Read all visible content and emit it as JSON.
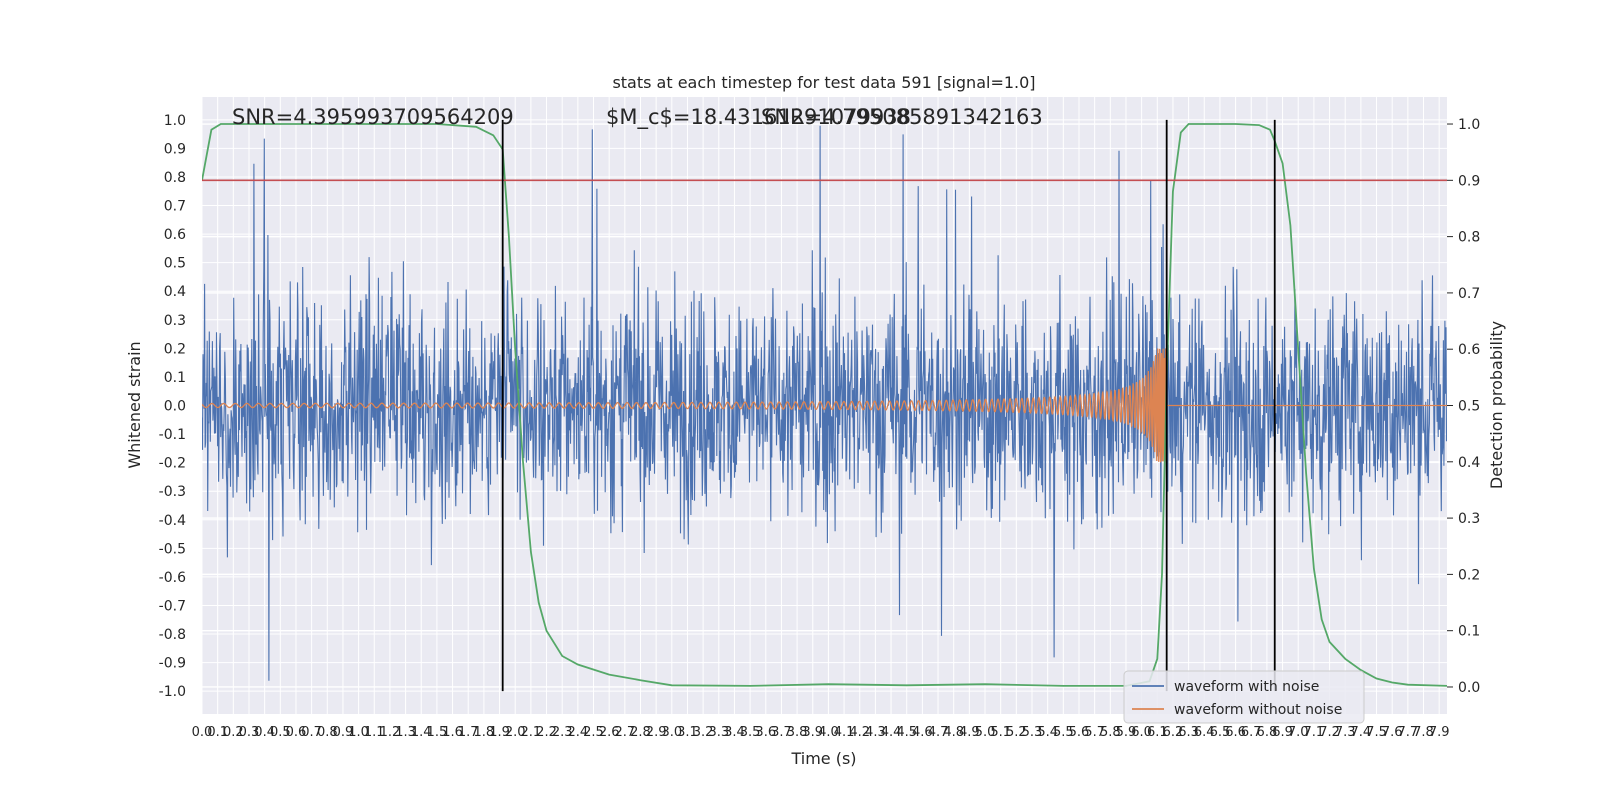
{
  "chart_data": {
    "type": "line",
    "title": "stats at each timestep for test data 591 [signal=1.0]",
    "xlabel": "Time (s)",
    "ylabel": "Whitened strain",
    "y2label": "Detection probability",
    "xlim": [
      0.0,
      7.95
    ],
    "ylim": [
      -1.08,
      1.08
    ],
    "y2lim": [
      -0.048,
      1.048
    ],
    "grid": true,
    "legend_position": "lower-right",
    "x_tick_labels": [
      "0.0",
      "0.1",
      "0.2",
      "0.3",
      "0.4",
      "0.5",
      "0.6",
      "0.7",
      "0.8",
      "0.9",
      "1.0",
      "1.1",
      "1.2",
      "1.3",
      "1.4",
      "1.5",
      "1.6",
      "1.7",
      "1.8",
      "1.9",
      "2.0",
      "2.1",
      "2.2",
      "2.3",
      "2.4",
      "2.5",
      "2.6",
      "2.7",
      "2.8",
      "2.9",
      "3.0",
      "3.1",
      "3.2",
      "3.3",
      "3.4",
      "3.5",
      "3.6",
      "3.7",
      "3.8",
      "3.9",
      "4.0",
      "4.1",
      "4.2",
      "4.3",
      "4.4",
      "4.5",
      "4.6",
      "4.7",
      "4.8",
      "4.9",
      "5.0",
      "5.1",
      "5.2",
      "5.3",
      "5.4",
      "5.5",
      "5.6",
      "5.7",
      "5.8",
      "5.9",
      "6.0",
      "6.1",
      "6.2",
      "6.3",
      "6.4",
      "6.5",
      "6.6",
      "6.7",
      "6.8",
      "6.9",
      "7.0",
      "7.1",
      "7.2",
      "7.3",
      "7.4",
      "7.5",
      "7.6",
      "7.7",
      "7.8",
      "7.9"
    ],
    "y_tick_labels": [
      "1.0",
      "0.9",
      "0.8",
      "0.7",
      "0.6",
      "0.5",
      "0.4",
      "0.3",
      "0.2",
      "0.1",
      "0.0",
      "-0.1",
      "-0.2",
      "-0.3",
      "-0.4",
      "-0.5",
      "-0.6",
      "-0.7",
      "-0.8",
      "-0.9",
      "-1.0"
    ],
    "y2_tick_labels": [
      "1.0",
      "0.9",
      "0.8",
      "0.7",
      "0.6",
      "0.5",
      "0.4",
      "0.3",
      "0.2",
      "0.1",
      "0.0"
    ],
    "annotations": [
      "SNR=4.395993709564209",
      "$M_c$=18.43161291079938",
      "SNR=4.795085891342163"
    ],
    "threshold": {
      "y2": 0.9,
      "color": "#c44e52"
    },
    "vertical_lines_x": [
      1.92,
      6.16,
      6.85
    ],
    "series": [
      {
        "name": "waveform with noise",
        "color": "#4c72b0",
        "axis": "left",
        "style": "noise",
        "typical_amplitude": 0.45,
        "max_abs": 1.0
      },
      {
        "name": "waveform without noise",
        "color": "#dd8452",
        "axis": "left",
        "style": "chirp",
        "merger_time": 6.16,
        "peak_amplitude": 0.2
      },
      {
        "name": "",
        "color": "#55a868",
        "axis": "right",
        "x": [
          0.0,
          0.06,
          0.12,
          0.2,
          0.4,
          0.8,
          1.2,
          1.5,
          1.75,
          1.86,
          1.92,
          1.96,
          2.0,
          2.05,
          2.1,
          2.15,
          2.2,
          2.3,
          2.4,
          2.6,
          2.8,
          3.0,
          3.5,
          4.0,
          4.5,
          5.0,
          5.5,
          5.9,
          6.05,
          6.1,
          6.13,
          6.16,
          6.2,
          6.25,
          6.3,
          6.4,
          6.6,
          6.75,
          6.82,
          6.85,
          6.9,
          6.95,
          7.0,
          7.05,
          7.1,
          7.15,
          7.2,
          7.3,
          7.4,
          7.5,
          7.6,
          7.7,
          7.95
        ],
        "y": [
          0.9,
          0.99,
          1.0,
          1.0,
          1.0,
          1.0,
          1.0,
          1.0,
          0.995,
          0.98,
          0.955,
          0.8,
          0.6,
          0.4,
          0.24,
          0.15,
          0.1,
          0.055,
          0.04,
          0.022,
          0.012,
          0.003,
          0.002,
          0.005,
          0.003,
          0.005,
          0.002,
          0.002,
          0.01,
          0.05,
          0.2,
          0.55,
          0.88,
          0.985,
          1.0,
          1.0,
          1.0,
          0.998,
          0.99,
          0.97,
          0.93,
          0.82,
          0.6,
          0.38,
          0.21,
          0.12,
          0.08,
          0.05,
          0.03,
          0.015,
          0.008,
          0.004,
          0.002
        ]
      }
    ]
  }
}
